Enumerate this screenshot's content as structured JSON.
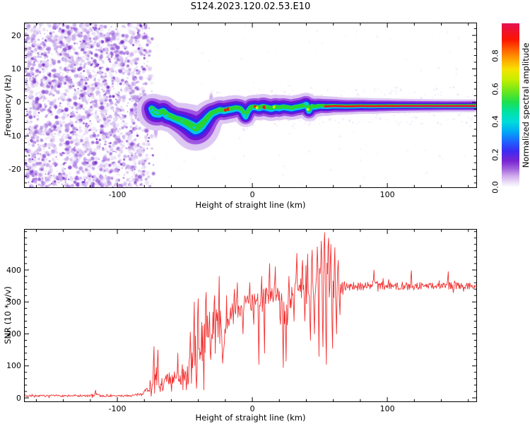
{
  "title": "S124.2023.120.02.53.E10",
  "chart_data": [
    {
      "type": "heatmap",
      "name": "spectrogram",
      "xlabel": "Height of straight line (km)",
      "ylabel": "Frequency (Hz)",
      "xlim": [
        -168.6,
        165.9
      ],
      "ylim": [
        -25.3,
        23.6
      ],
      "xticks": [
        -100,
        0,
        100
      ],
      "xtick_labels": [
        "-100",
        "0",
        "100"
      ],
      "x_minor_step": 20,
      "yticks": [
        20,
        10,
        0,
        -10,
        -20
      ],
      "ytick_labels": [
        "20",
        "10",
        "0",
        "-10",
        "-20"
      ],
      "y_minor_step": 2,
      "noise_region_km": [
        -168.6,
        -73
      ],
      "noise_palette": [
        "#ece3f8",
        "#d9c4f1",
        "#bd99e8",
        "#9c66dc",
        "#7f35d0",
        "#6716c4"
      ],
      "bead_colors": {
        "red": "#ee1616",
        "yellow": "#e6ee00",
        "green": "#28d432",
        "cyan": "#00cfe0"
      },
      "halo_layers": [
        [
          "#ddc8f3",
          0.5,
          2.1,
          15.0,
          0
        ],
        [
          "#a055e2",
          0.55,
          1.5,
          10.5,
          0
        ],
        [
          "#6d15d6",
          0.9,
          1.1,
          8.0,
          0
        ],
        [
          "#2b2bee",
          0.95,
          0.78,
          6.6,
          0.3
        ],
        [
          "#00c8ea",
          1.0,
          0.5,
          5.0,
          0.6
        ],
        [
          "#28d432",
          1.0,
          0.3,
          3.6,
          -0.5
        ]
      ],
      "plumes": [
        [
          -71.5,
          -8.5,
          5
        ],
        [
          -42,
          -11,
          6.5
        ],
        [
          -30.5,
          1.0,
          4.5
        ],
        [
          40,
          1.2,
          3.5
        ]
      ],
      "trace": {
        "solid_from_km": 50,
        "red_core_from_km": 52,
        "crimson_from_km": 108,
        "centerline": [
          [
            -74.5,
            -1.8,
            2.0,
            0.35
          ],
          [
            -72,
            -3.0,
            2.6,
            0.5
          ],
          [
            -69,
            -3.2,
            2.4,
            0.55
          ],
          [
            -66,
            -2.6,
            2.2,
            0.55
          ],
          [
            -63,
            -3.8,
            2.3,
            0.6
          ],
          [
            -60,
            -4.2,
            2.2,
            0.6
          ],
          [
            -57,
            -4.8,
            2.2,
            0.6
          ],
          [
            -54,
            -5.2,
            2.4,
            0.6
          ],
          [
            -51,
            -5.7,
            2.6,
            0.6
          ],
          [
            -48,
            -6.3,
            2.8,
            0.55
          ],
          [
            -45,
            -7.0,
            3.0,
            0.5
          ],
          [
            -42,
            -7.8,
            3.2,
            0.45
          ],
          [
            -40,
            -7.5,
            3.0,
            0.5
          ],
          [
            -38,
            -6.8,
            2.8,
            0.55
          ],
          [
            -35,
            -5.5,
            2.4,
            0.6
          ],
          [
            -32,
            -4.0,
            2.2,
            0.65
          ],
          [
            -30,
            -3.2,
            2.0,
            0.7
          ],
          [
            -27,
            -2.7,
            1.9,
            0.75
          ],
          [
            -24,
            -2.2,
            1.9,
            0.8
          ],
          [
            -21,
            -2.4,
            1.9,
            0.8
          ],
          [
            -18,
            -2.1,
            1.9,
            0.8
          ],
          [
            -15,
            -1.9,
            1.9,
            0.85
          ],
          [
            -12,
            -1.6,
            1.8,
            0.8
          ],
          [
            -9,
            -1.8,
            1.8,
            0.8
          ],
          [
            -7,
            -2.6,
            1.6,
            0.7
          ],
          [
            -5,
            -4.3,
            1.5,
            0.6
          ],
          [
            -3,
            -2.4,
            1.6,
            0.7
          ],
          [
            -1,
            -1.4,
            1.7,
            0.8
          ],
          [
            2,
            -1.3,
            1.7,
            0.8
          ],
          [
            5,
            -1.6,
            1.8,
            0.8
          ],
          [
            8,
            -1.2,
            1.8,
            0.8
          ],
          [
            11,
            -1.5,
            1.8,
            0.8
          ],
          [
            14,
            -1.8,
            1.8,
            0.8
          ],
          [
            17,
            -1.4,
            1.8,
            0.85
          ],
          [
            20,
            -1.6,
            1.8,
            0.8
          ],
          [
            23,
            -1.3,
            1.7,
            0.8
          ],
          [
            26,
            -1.5,
            1.7,
            0.8
          ],
          [
            29,
            -1.7,
            1.7,
            0.78
          ],
          [
            32,
            -1.4,
            1.7,
            0.8
          ],
          [
            35,
            -1.2,
            1.7,
            0.82
          ],
          [
            38,
            -0.9,
            1.7,
            0.8
          ],
          [
            40,
            -0.4,
            1.6,
            0.75
          ],
          [
            42,
            -2.6,
            1.5,
            0.65
          ],
          [
            44,
            -1.0,
            1.5,
            0.75
          ],
          [
            46,
            -1.3,
            1.5,
            0.8
          ],
          [
            48,
            -1.1,
            1.5,
            0.82
          ],
          [
            50,
            -1.0,
            1.4,
            0.85
          ],
          [
            55,
            -1.1,
            1.4,
            0.85
          ],
          [
            60,
            -1.0,
            1.3,
            0.85
          ],
          [
            70,
            -1.1,
            1.2,
            0.87
          ],
          [
            80,
            -1.0,
            1.15,
            0.9
          ],
          [
            90,
            -1.05,
            1.1,
            0.9
          ],
          [
            100,
            -1.0,
            1.05,
            0.92
          ],
          [
            110,
            -1.0,
            1.0,
            0.95
          ],
          [
            125,
            -1.0,
            0.95,
            0.97
          ],
          [
            145,
            -1.0,
            0.9,
            1.0
          ],
          [
            165.9,
            -1.0,
            0.9,
            1.0
          ]
        ]
      },
      "colorbar": {
        "label": "Normalized spectral amplitude",
        "range": [
          0,
          1
        ],
        "ticks": [
          0,
          0.2,
          0.4,
          0.6,
          0.8
        ],
        "tick_labels": [
          "0.0",
          "0.2",
          "0.4",
          "0.6",
          "0.8"
        ],
        "gradient": [
          [
            0,
            "#ffffff"
          ],
          [
            0.03,
            "#ecdff7"
          ],
          [
            0.07,
            "#cfa9ec"
          ],
          [
            0.11,
            "#a365dc"
          ],
          [
            0.16,
            "#7a25d2"
          ],
          [
            0.22,
            "#3c2af0"
          ],
          [
            0.28,
            "#1f64ff"
          ],
          [
            0.34,
            "#00aaf4"
          ],
          [
            0.4,
            "#00dcdc"
          ],
          [
            0.46,
            "#00e2a4"
          ],
          [
            0.52,
            "#1edf4e"
          ],
          [
            0.58,
            "#66e61e"
          ],
          [
            0.66,
            "#c8ee00"
          ],
          [
            0.72,
            "#f6e200"
          ],
          [
            0.78,
            "#ffa400"
          ],
          [
            0.84,
            "#ff5f00"
          ],
          [
            0.9,
            "#fb1500"
          ],
          [
            0.96,
            "#ee1130"
          ],
          [
            1,
            "#e41450"
          ]
        ]
      }
    },
    {
      "type": "line",
      "name": "snr",
      "xlabel": "Height of straight line (km)",
      "ylabel": "SNR (10 * v/v)",
      "xlim": [
        -168.6,
        165.9
      ],
      "ylim": [
        -11,
        526
      ],
      "xticks": [
        -100,
        0,
        100
      ],
      "xtick_labels": [
        "-100",
        "0",
        "100"
      ],
      "x_minor_step": 20,
      "yticks": [
        0,
        100,
        200,
        300,
        400
      ],
      "ytick_labels": [
        "0",
        "100",
        "200",
        "300",
        "400"
      ],
      "y_minor_step": 20,
      "line_color": "#f23030",
      "keypoints": [
        [
          -168.6,
          6,
          5
        ],
        [
          -150,
          6,
          5
        ],
        [
          -135,
          7,
          6
        ],
        [
          -120,
          6,
          6
        ],
        [
          -116,
          12,
          14
        ],
        [
          -112,
          6,
          5
        ],
        [
          -100,
          6,
          5
        ],
        [
          -90,
          7,
          6
        ],
        [
          -84,
          10,
          7
        ],
        [
          -80,
          20,
          12
        ],
        [
          -77,
          30,
          18
        ],
        [
          -74,
          45,
          60
        ],
        [
          -71,
          55,
          70
        ],
        [
          -68,
          40,
          40
        ],
        [
          -65,
          45,
          40
        ],
        [
          -62,
          55,
          45
        ],
        [
          -59,
          50,
          40
        ],
        [
          -56,
          60,
          55
        ],
        [
          -53,
          75,
          65
        ],
        [
          -50,
          85,
          75
        ],
        [
          -47,
          95,
          85
        ],
        [
          -44,
          110,
          95
        ],
        [
          -41,
          150,
          120
        ],
        [
          -38,
          170,
          120
        ],
        [
          -35,
          190,
          110
        ],
        [
          -32,
          215,
          95
        ],
        [
          -29,
          235,
          85
        ],
        [
          -26,
          240,
          85
        ],
        [
          -24,
          225,
          95
        ],
        [
          -22,
          170,
          90
        ],
        [
          -20,
          215,
          75
        ],
        [
          -18,
          245,
          65
        ],
        [
          -16,
          258,
          55
        ],
        [
          -14,
          265,
          55
        ],
        [
          -12,
          272,
          50
        ],
        [
          -10,
          278,
          48
        ],
        [
          -8,
          285,
          45
        ],
        [
          -6,
          290,
          42
        ],
        [
          -4,
          294,
          42
        ],
        [
          -2,
          297,
          42
        ],
        [
          0,
          300,
          45
        ],
        [
          2,
          295,
          50
        ],
        [
          4,
          300,
          48
        ],
        [
          6,
          290,
          60
        ],
        [
          8,
          305,
          60
        ],
        [
          10,
          318,
          55
        ],
        [
          12,
          328,
          55
        ],
        [
          14,
          330,
          50
        ],
        [
          16,
          322,
          52
        ],
        [
          18,
          315,
          58
        ],
        [
          20,
          312,
          60
        ],
        [
          22,
          290,
          80
        ],
        [
          24,
          250,
          100
        ],
        [
          26,
          265,
          95
        ],
        [
          28,
          305,
          65
        ],
        [
          30,
          318,
          55
        ],
        [
          32,
          328,
          55
        ],
        [
          34,
          333,
          55
        ],
        [
          36,
          340,
          58
        ],
        [
          38,
          342,
          65
        ],
        [
          40,
          335,
          80
        ],
        [
          42,
          345,
          90
        ],
        [
          44,
          352,
          95
        ],
        [
          46,
          358,
          105
        ],
        [
          48,
          362,
          115
        ],
        [
          50,
          368,
          125
        ],
        [
          52,
          375,
          135
        ],
        [
          54,
          378,
          140
        ],
        [
          56,
          372,
          135
        ],
        [
          58,
          364,
          120
        ],
        [
          60,
          358,
          100
        ],
        [
          62,
          355,
          75
        ],
        [
          64,
          352,
          45
        ],
        [
          66,
          350,
          30
        ],
        [
          68,
          351,
          26
        ],
        [
          72,
          350,
          24
        ],
        [
          78,
          349,
          23
        ],
        [
          85,
          351,
          22
        ],
        [
          92,
          352,
          22
        ],
        [
          100,
          350,
          21
        ],
        [
          108,
          351,
          21
        ],
        [
          116,
          349,
          20
        ],
        [
          124,
          350,
          20
        ],
        [
          132,
          351,
          19
        ],
        [
          140,
          350,
          19
        ],
        [
          148,
          350,
          18
        ],
        [
          156,
          351,
          18
        ],
        [
          165.9,
          350,
          18
        ]
      ],
      "spikes": [
        [
          -116,
          24
        ],
        [
          -73,
          160
        ],
        [
          -70,
          150
        ],
        [
          -66,
          25
        ],
        [
          -60,
          20
        ],
        [
          -55,
          140
        ],
        [
          -49,
          25
        ],
        [
          -46,
          205
        ],
        [
          -43,
          300
        ],
        [
          -41.5,
          30
        ],
        [
          -40,
          310
        ],
        [
          -36,
          25
        ],
        [
          -34,
          330
        ],
        [
          -31,
          120
        ],
        [
          -28,
          320
        ],
        [
          -24.5,
          380
        ],
        [
          -22,
          108
        ],
        [
          -19,
          320
        ],
        [
          -13,
          340
        ],
        [
          -11,
          360
        ],
        [
          -7,
          200
        ],
        [
          -2,
          360
        ],
        [
          1,
          230
        ],
        [
          5,
          105
        ],
        [
          7,
          380
        ],
        [
          9,
          140
        ],
        [
          13,
          420
        ],
        [
          17,
          410
        ],
        [
          21,
          230
        ],
        [
          23,
          95
        ],
        [
          25,
          115
        ],
        [
          27,
          380
        ],
        [
          31,
          240
        ],
        [
          33,
          452
        ],
        [
          37,
          430
        ],
        [
          39,
          240
        ],
        [
          41,
          450
        ],
        [
          43,
          180
        ],
        [
          44.5,
          462
        ],
        [
          46,
          200
        ],
        [
          48,
          472
        ],
        [
          49.5,
          130
        ],
        [
          51,
          490
        ],
        [
          52.5,
          160
        ],
        [
          53.5,
          517
        ],
        [
          55,
          105
        ],
        [
          56.5,
          500
        ],
        [
          58,
          480
        ],
        [
          59.5,
          155
        ],
        [
          61,
          470
        ],
        [
          62.5,
          200
        ],
        [
          63.5,
          430
        ],
        [
          65,
          260
        ],
        [
          90,
          400
        ],
        [
          118,
          398
        ],
        [
          145,
          395
        ]
      ]
    }
  ]
}
